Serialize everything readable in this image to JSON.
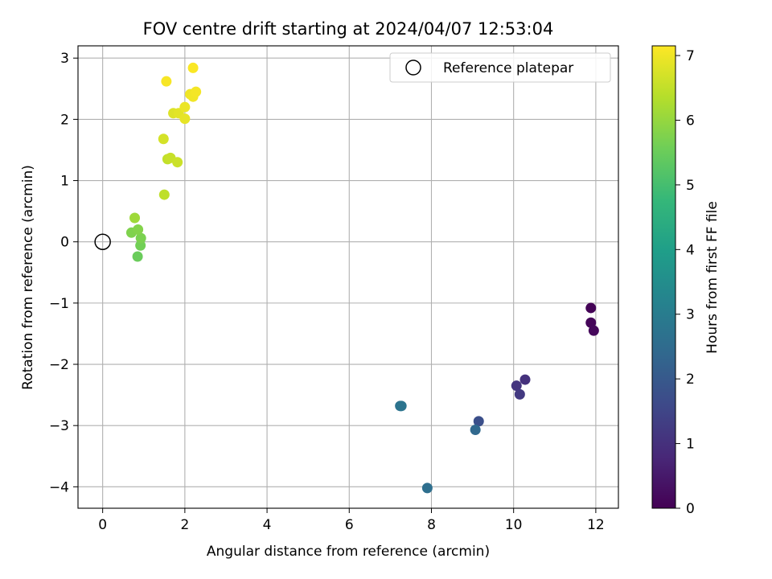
{
  "chart_data": {
    "type": "scatter",
    "title": "FOV centre drift starting at 2024/04/07 12:53:04",
    "xlabel": "Angular distance from reference (arcmin)",
    "ylabel": "Rotation from reference (arcmin)",
    "xlim": [
      -0.6,
      12.55
    ],
    "ylim": [
      -4.35,
      3.2
    ],
    "xticks": [
      0,
      2,
      4,
      6,
      8,
      10,
      12
    ],
    "yticks": [
      -4,
      -3,
      -2,
      -1,
      0,
      1,
      2,
      3
    ],
    "grid": true,
    "legend": {
      "placement": "top-right",
      "entries": [
        {
          "label": "Reference platepar",
          "marker": "open-circle"
        }
      ]
    },
    "reference_point": {
      "x": 0,
      "y": 0
    },
    "colorbar": {
      "label": "Hours from first FF file",
      "colormap": "viridis",
      "range": [
        0,
        7.15
      ],
      "ticks": [
        0,
        1,
        2,
        3,
        4,
        5,
        6,
        7
      ]
    },
    "points": [
      {
        "x": 11.88,
        "y": -1.08,
        "hours": 0.05
      },
      {
        "x": 11.88,
        "y": -1.32,
        "hours": 0.1
      },
      {
        "x": 11.95,
        "y": -1.45,
        "hours": 0.15
      },
      {
        "x": 10.28,
        "y": -2.25,
        "hours": 1.0
      },
      {
        "x": 10.07,
        "y": -2.35,
        "hours": 1.1
      },
      {
        "x": 10.15,
        "y": -2.49,
        "hours": 1.2
      },
      {
        "x": 9.15,
        "y": -2.93,
        "hours": 1.75
      },
      {
        "x": 9.07,
        "y": -3.07,
        "hours": 2.4
      },
      {
        "x": 7.24,
        "y": -2.68,
        "hours": 2.7
      },
      {
        "x": 7.27,
        "y": -2.68,
        "hours": 2.75
      },
      {
        "x": 7.9,
        "y": -4.02,
        "hours": 2.6
      },
      {
        "x": 0.85,
        "y": -0.24,
        "hours": 5.5
      },
      {
        "x": 0.92,
        "y": -0.06,
        "hours": 5.6
      },
      {
        "x": 0.93,
        "y": 0.06,
        "hours": 5.7
      },
      {
        "x": 0.7,
        "y": 0.15,
        "hours": 5.75
      },
      {
        "x": 0.86,
        "y": 0.2,
        "hours": 5.8
      },
      {
        "x": 0.78,
        "y": 0.39,
        "hours": 6.1
      },
      {
        "x": 1.5,
        "y": 0.77,
        "hours": 6.45
      },
      {
        "x": 1.58,
        "y": 1.35,
        "hours": 6.5
      },
      {
        "x": 1.65,
        "y": 1.37,
        "hours": 6.55
      },
      {
        "x": 1.82,
        "y": 1.3,
        "hours": 6.6
      },
      {
        "x": 1.48,
        "y": 1.68,
        "hours": 6.7
      },
      {
        "x": 1.72,
        "y": 2.1,
        "hours": 6.8
      },
      {
        "x": 1.85,
        "y": 2.1,
        "hours": 6.85
      },
      {
        "x": 2.0,
        "y": 2.01,
        "hours": 6.9
      },
      {
        "x": 2.0,
        "y": 2.2,
        "hours": 6.95
      },
      {
        "x": 2.13,
        "y": 2.41,
        "hours": 7.0
      },
      {
        "x": 2.2,
        "y": 2.37,
        "hours": 7.02
      },
      {
        "x": 2.27,
        "y": 2.45,
        "hours": 7.05
      },
      {
        "x": 1.55,
        "y": 2.62,
        "hours": 7.08
      },
      {
        "x": 2.2,
        "y": 2.84,
        "hours": 7.12
      }
    ]
  }
}
